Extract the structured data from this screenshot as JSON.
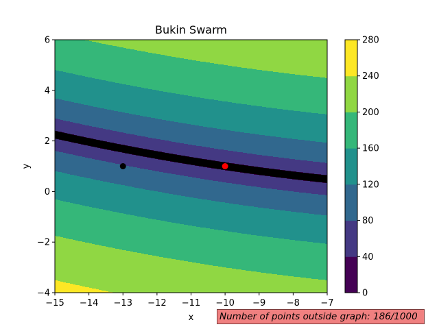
{
  "chart_data": {
    "type": "contour",
    "title": "Bukin Swarm",
    "xlabel": "x",
    "ylabel": "y",
    "xlim": [
      -15,
      -7
    ],
    "ylim": [
      -4,
      6
    ],
    "x_ticks": [
      "−15",
      "−14",
      "−13",
      "−12",
      "−11",
      "−10",
      "−9",
      "−8",
      "−7"
    ],
    "y_ticks": [
      "−4",
      "−2",
      "0",
      "2",
      "4",
      "6"
    ],
    "function": "f(x,y) = 100*sqrt(|y - 0.01x^2|) + 0.01*|x + 10|",
    "colorbar": {
      "levels": [
        0,
        40,
        80,
        120,
        160,
        200,
        240,
        280
      ],
      "tick_labels": [
        "0",
        "40",
        "80",
        "120",
        "160",
        "200",
        "240",
        "280"
      ],
      "colors": [
        "#440154",
        "#443983",
        "#31688e",
        "#21918c",
        "#35b779",
        "#90d743",
        "#fde725"
      ]
    },
    "swarm_curve": {
      "equation": "y = 0.01*x^2",
      "x_range": [
        -15,
        -7
      ],
      "color": "#000000"
    },
    "points": [
      {
        "x": -14.85,
        "y": 2.2,
        "color": "#000000"
      },
      {
        "x": -14.55,
        "y": 2.12,
        "color": "#000000"
      },
      {
        "x": -13.0,
        "y": 1.0,
        "color": "#000000"
      },
      {
        "x": -10.0,
        "y": 1.0,
        "color": "#ff0000"
      }
    ],
    "annotation": "Number of points outside graph: 186/1000"
  }
}
